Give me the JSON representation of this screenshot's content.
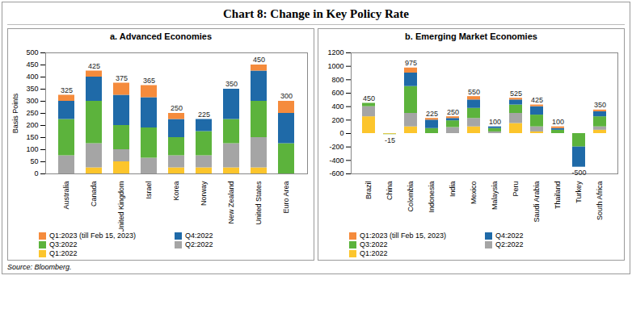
{
  "title": "Chart 8: Change in Key Policy Rate",
  "source": "Source: Bloomberg.",
  "chart_data": [
    {
      "type": "bar",
      "stacked": true,
      "title": "a. Advanced Economies",
      "y_label": "Basis Points",
      "categories": [
        "Australia",
        "Canada",
        "United Kingdom",
        "Israel",
        "Korea",
        "Norway",
        "New Zealand",
        "United States",
        "Euro Area"
      ],
      "ylim": [
        0,
        500
      ],
      "yticks": [
        0,
        50,
        100,
        150,
        200,
        250,
        300,
        350,
        400,
        450,
        500
      ],
      "totals": [
        325,
        425,
        375,
        365,
        250,
        225,
        350,
        450,
        300
      ],
      "series": [
        {
          "name": "Q1:2022",
          "color": "#fcc52c",
          "values": [
            0,
            25,
            50,
            0,
            25,
            25,
            25,
            25,
            0
          ]
        },
        {
          "name": "Q2:2022",
          "color": "#a5a5a5",
          "values": [
            75,
            100,
            50,
            65,
            50,
            50,
            100,
            125,
            0
          ]
        },
        {
          "name": "Q3:2022",
          "color": "#5cb33c",
          "values": [
            150,
            175,
            100,
            125,
            75,
            100,
            100,
            150,
            125
          ]
        },
        {
          "name": "Q4:2022",
          "color": "#1f6aa8",
          "values": [
            75,
            100,
            125,
            125,
            75,
            50,
            125,
            125,
            125
          ]
        },
        {
          "name": "Q1:2023 (till Feb 15, 2023)",
          "color": "#f58b3c",
          "values": [
            25,
            25,
            50,
            50,
            25,
            0,
            0,
            25,
            50
          ]
        }
      ]
    },
    {
      "type": "bar",
      "stacked": true,
      "title": "b. Emerging Market Economies",
      "categories": [
        "Brazil",
        "China",
        "Colombia",
        "Indonesia",
        "India",
        "Mexico",
        "Malaysia",
        "Peru",
        "Saudi Arabia",
        "Thailand",
        "Turkey",
        "South Africa"
      ],
      "ylim": [
        -600,
        1200
      ],
      "yticks": [
        -600,
        -400,
        -200,
        0,
        200,
        400,
        600,
        800,
        1000,
        1200
      ],
      "totals": [
        450,
        -15,
        975,
        225,
        250,
        550,
        100,
        525,
        425,
        100,
        -500,
        350
      ],
      "series": [
        {
          "name": "Q1:2022",
          "color": "#fcc52c",
          "values": [
            250,
            -10,
            100,
            0,
            0,
            100,
            0,
            150,
            25,
            0,
            0,
            50
          ]
        },
        {
          "name": "Q2:2022",
          "color": "#a5a5a5",
          "values": [
            150,
            0,
            200,
            0,
            90,
            125,
            25,
            150,
            75,
            0,
            0,
            50
          ]
        },
        {
          "name": "Q3:2022",
          "color": "#5cb33c",
          "values": [
            50,
            -5,
            400,
            75,
            100,
            150,
            50,
            125,
            175,
            50,
            -200,
            150
          ]
        },
        {
          "name": "Q4:2022",
          "color": "#1f6aa8",
          "values": [
            0,
            0,
            200,
            125,
            35,
            125,
            25,
            75,
            125,
            25,
            -300,
            75
          ]
        },
        {
          "name": "Q1:2023 (till Feb 15, 2023)",
          "color": "#f58b3c",
          "values": [
            0,
            0,
            75,
            25,
            25,
            50,
            0,
            25,
            25,
            25,
            0,
            25
          ]
        }
      ]
    }
  ]
}
